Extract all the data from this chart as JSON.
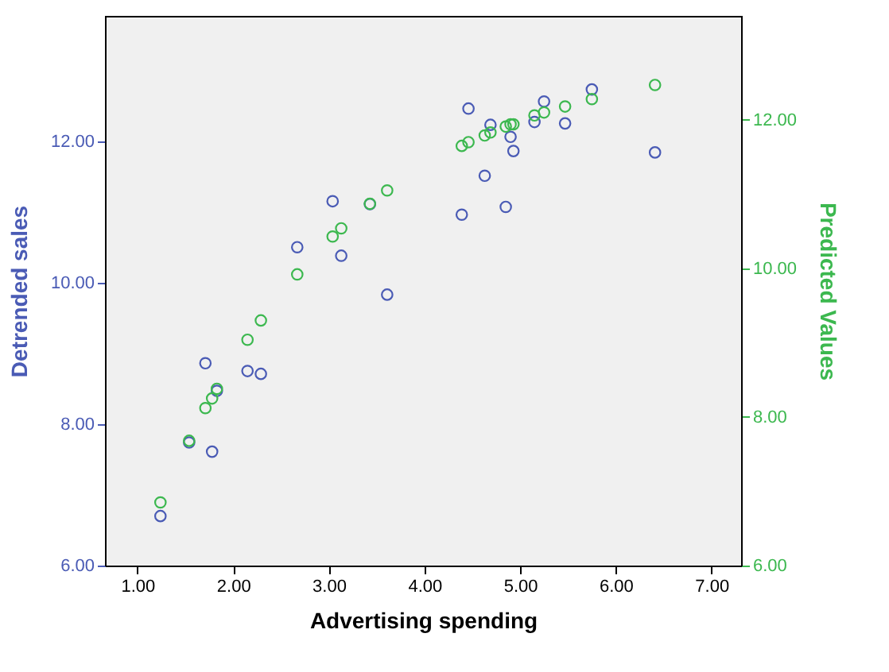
{
  "chart_data": {
    "type": "scatter",
    "xlabel": "Advertising spending",
    "ylabel": "Detrended sales",
    "y2label": "Predicted Values",
    "x": [
      1.24,
      1.54,
      1.78,
      1.71,
      1.83,
      2.15,
      2.29,
      2.67,
      3.04,
      3.13,
      3.43,
      3.61,
      4.39,
      4.46,
      4.63,
      4.69,
      4.85,
      4.9,
      4.93,
      5.15,
      5.25,
      5.47,
      5.75,
      6.41
    ],
    "series": [
      {
        "color": "#4a5bb5",
        "values": [
          6.7,
          7.74,
          7.61,
          8.86,
          8.47,
          8.75,
          8.71,
          10.5,
          11.15,
          10.38,
          11.11,
          9.83,
          10.96,
          12.46,
          11.51,
          12.23,
          11.07,
          12.06,
          11.86,
          12.27,
          12.56,
          12.25,
          12.73,
          11.84
        ]
      },
      {
        "color": "#3cb84f",
        "axis": "y2",
        "x": [
          1.24,
          1.54,
          1.71,
          1.78,
          1.83,
          2.15,
          2.29,
          2.67,
          3.04,
          3.13,
          3.43,
          3.61,
          4.39,
          4.46,
          4.63,
          4.69,
          4.85,
          4.9,
          4.93,
          5.15,
          5.25,
          5.47,
          5.75,
          6.41
        ],
        "values": [
          6.85,
          7.68,
          8.12,
          8.25,
          8.38,
          9.04,
          9.3,
          9.92,
          10.43,
          10.54,
          10.87,
          11.05,
          11.65,
          11.7,
          11.79,
          11.83,
          11.91,
          11.94,
          11.94,
          12.06,
          12.1,
          12.18,
          12.28,
          12.47
        ]
      }
    ],
    "xlim": [
      0.66,
      7.31
    ],
    "xticks": [
      {
        "value": 1,
        "label": "1.00"
      },
      {
        "value": 2,
        "label": "2.00"
      },
      {
        "value": 3,
        "label": "3.00"
      },
      {
        "value": 4,
        "label": "4.00"
      },
      {
        "value": 5,
        "label": "5.00"
      },
      {
        "value": 6,
        "label": "6.00"
      },
      {
        "value": 7,
        "label": "7.00"
      }
    ],
    "ylim": [
      6,
      13.77
    ],
    "yticks": [
      {
        "value": 6,
        "label": "6.00"
      },
      {
        "value": 8,
        "label": "8.00"
      },
      {
        "value": 10,
        "label": "10.00"
      },
      {
        "value": 12,
        "label": "12.00"
      }
    ],
    "y2lim": [
      6,
      13.4
    ],
    "y2ticks": [
      {
        "value": 6,
        "label": "6.00"
      },
      {
        "value": 8,
        "label": "8.00"
      },
      {
        "value": 10,
        "label": "10.00"
      },
      {
        "value": 12,
        "label": "12.00"
      }
    ],
    "marker": "circle",
    "grid": false
  }
}
